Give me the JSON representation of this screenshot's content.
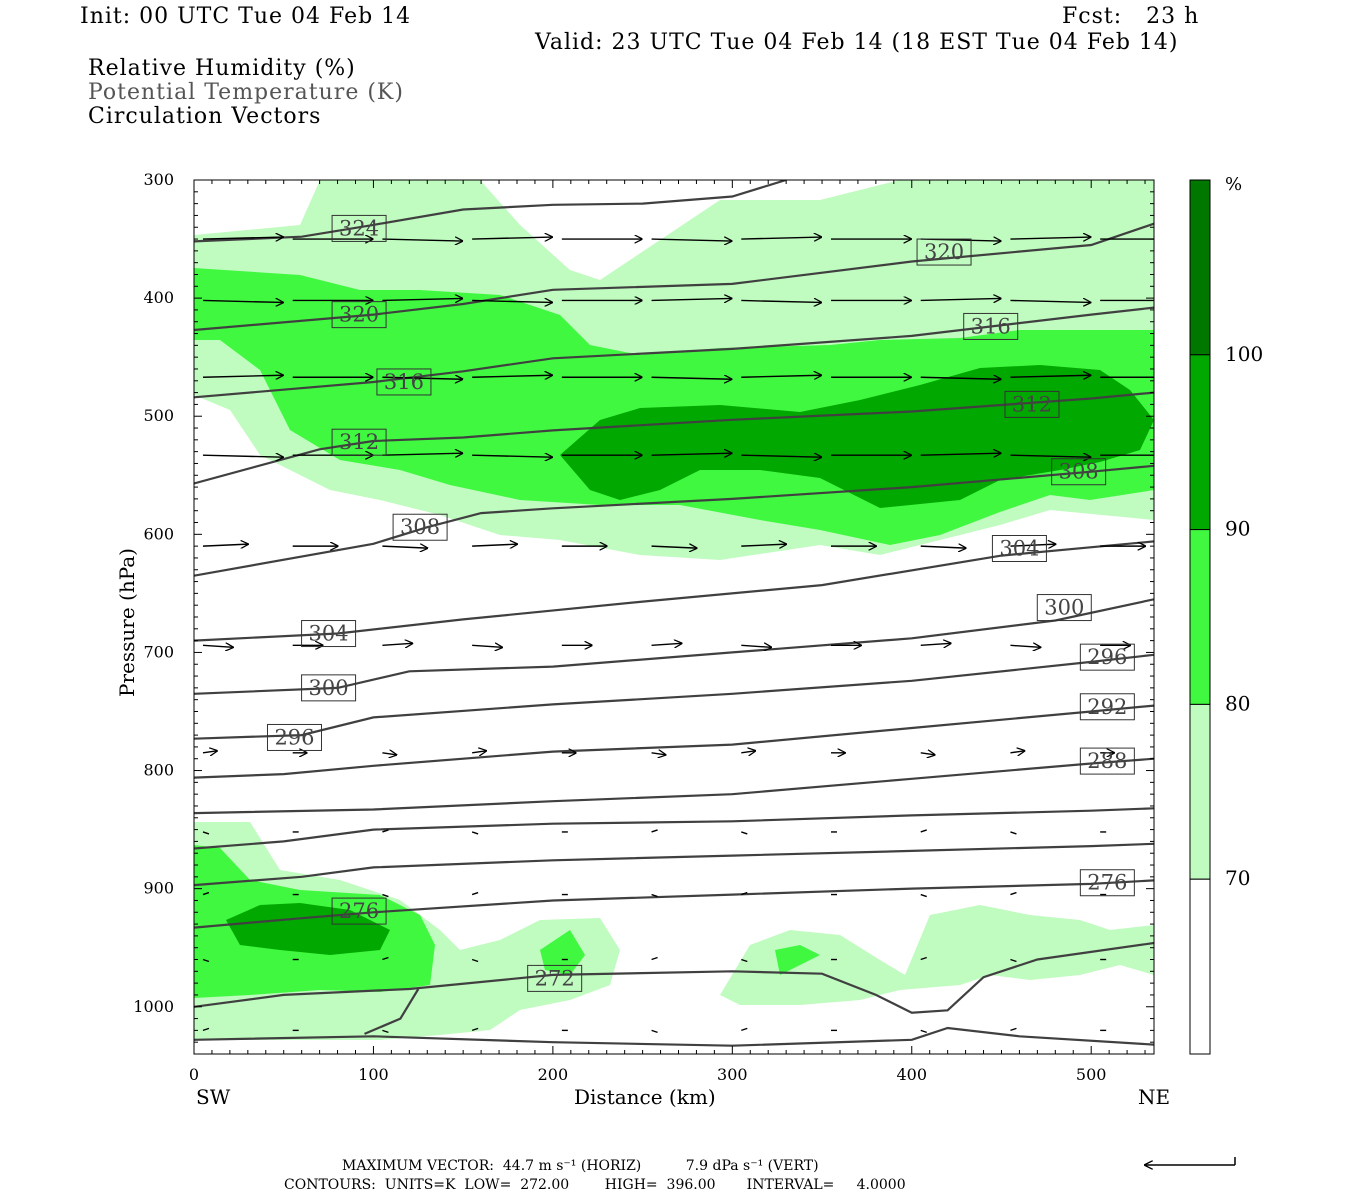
{
  "header": {
    "init": "Init: 00 UTC Tue 04 Feb 14",
    "fcst": "Fcst:   23 h",
    "valid": "Valid: 23 UTC Tue 04 Feb 14 (18 EST Tue 04 Feb 14)",
    "fields": [
      "Relative Humidity (%)",
      "Potential Temperature (K)",
      "Circulation Vectors"
    ]
  },
  "footer": {
    "max_vector_line": "MAXIMUM VECTOR:  44.7 m s⁻¹ (HORIZ)          7.9 dPa s⁻¹ (VERT)",
    "contours_line": "CONTOURS:  UNITS=K  LOW=  272.00        HIGH=  396.00       INTERVAL=     4.0000"
  },
  "colors": {
    "rh70": "#c0fbc0",
    "rh80": "#40f840",
    "rh90": "#00a800",
    "rh100": "#007800",
    "contour": "#404040"
  },
  "chart_data": {
    "type": "cross-section",
    "xlabel": "Distance (km)",
    "ylabel": "Pressure (hPa)",
    "xlim": [
      0,
      535
    ],
    "ylim": [
      1040,
      300
    ],
    "x_ticks": [
      0,
      100,
      200,
      300,
      400,
      500
    ],
    "y_ticks": [
      300,
      400,
      500,
      600,
      700,
      800,
      900,
      1000
    ],
    "x_end_labels": {
      "left": "SW",
      "right": "NE"
    },
    "colorbar": {
      "unit": "%",
      "levels": [
        70,
        80,
        90,
        100
      ]
    },
    "theta_contours": [
      {
        "label": "324",
        "label_pos": [
          92,
          341
        ],
        "points": [
          [
            0,
            352
          ],
          [
            60,
            348
          ],
          [
            100,
            338
          ],
          [
            150,
            325
          ],
          [
            200,
            321
          ],
          [
            250,
            320
          ],
          [
            300,
            314
          ],
          [
            330,
            300
          ]
        ]
      },
      {
        "label": "320",
        "label_pos": [
          92,
          414
        ],
        "points": [
          [
            0,
            427
          ],
          [
            100,
            414
          ],
          [
            150,
            405
          ],
          [
            200,
            393
          ],
          [
            300,
            388
          ],
          [
            400,
            369
          ],
          [
            500,
            355
          ],
          [
            535,
            337
          ]
        ]
      },
      {
        "label": "320",
        "label_pos": [
          418,
          361
        ],
        "points": []
      },
      {
        "label": "316",
        "label_pos": [
          117,
          471
        ],
        "points": [
          [
            0,
            484
          ],
          [
            100,
            471
          ],
          [
            150,
            462
          ],
          [
            200,
            451
          ],
          [
            300,
            443
          ],
          [
            400,
            432
          ],
          [
            500,
            414
          ],
          [
            535,
            408
          ]
        ]
      },
      {
        "label": "316",
        "label_pos": [
          444,
          424
        ],
        "points": []
      },
      {
        "label": "312",
        "label_pos": [
          92,
          522
        ],
        "points": [
          [
            0,
            557
          ],
          [
            70,
            528
          ],
          [
            100,
            521
          ],
          [
            150,
            518
          ],
          [
            200,
            512
          ],
          [
            300,
            503
          ],
          [
            400,
            496
          ],
          [
            500,
            485
          ],
          [
            535,
            480
          ]
        ]
      },
      {
        "label": "312",
        "label_pos": [
          467,
          490
        ],
        "points": []
      },
      {
        "label": "308",
        "label_pos": [
          126,
          594
        ],
        "points": [
          [
            0,
            635
          ],
          [
            100,
            608
          ],
          [
            130,
            594
          ],
          [
            160,
            582
          ],
          [
            200,
            578
          ],
          [
            300,
            570
          ],
          [
            400,
            560
          ],
          [
            500,
            547
          ],
          [
            535,
            542
          ]
        ]
      },
      {
        "label": "308",
        "label_pos": [
          493,
          547
        ],
        "points": []
      },
      {
        "label": "304",
        "label_pos": [
          75,
          684
        ],
        "points": [
          [
            0,
            690
          ],
          [
            80,
            684
          ],
          [
            150,
            672
          ],
          [
            250,
            657
          ],
          [
            350,
            643
          ],
          [
            450,
            618
          ],
          [
            535,
            606
          ]
        ]
      },
      {
        "label": "304",
        "label_pos": [
          460,
          612
        ],
        "points": []
      },
      {
        "label": "300",
        "label_pos": [
          75,
          730
        ],
        "points": [
          [
            0,
            735
          ],
          [
            80,
            730
          ],
          [
            120,
            716
          ],
          [
            200,
            712
          ],
          [
            300,
            700
          ],
          [
            400,
            688
          ],
          [
            480,
            673
          ],
          [
            535,
            655
          ]
        ]
      },
      {
        "label": "300",
        "label_pos": [
          485,
          662
        ],
        "points": []
      },
      {
        "label": "296",
        "label_pos": [
          56,
          772
        ],
        "points": [
          [
            0,
            773
          ],
          [
            60,
            770
          ],
          [
            100,
            755
          ],
          [
            200,
            744
          ],
          [
            300,
            735
          ],
          [
            400,
            724
          ],
          [
            500,
            708
          ],
          [
            535,
            702
          ]
        ]
      },
      {
        "label": "296",
        "label_pos": [
          509,
          704
        ],
        "points": []
      },
      {
        "label": "292",
        "label_pos": [
          509,
          746
        ],
        "points": [
          [
            0,
            806
          ],
          [
            50,
            803
          ],
          [
            100,
            796
          ],
          [
            200,
            784
          ],
          [
            300,
            778
          ],
          [
            400,
            764
          ],
          [
            500,
            750
          ],
          [
            535,
            745
          ]
        ]
      },
      {
        "label": "288",
        "label_pos": [
          509,
          792
        ],
        "points": [
          [
            0,
            836
          ],
          [
            100,
            833
          ],
          [
            200,
            826
          ],
          [
            300,
            820
          ],
          [
            400,
            807
          ],
          [
            500,
            794
          ],
          [
            535,
            790
          ]
        ]
      },
      {
        "label": "",
        "label_pos": [],
        "points": [
          [
            0,
            866
          ],
          [
            50,
            860
          ],
          [
            100,
            850
          ],
          [
            200,
            845
          ],
          [
            300,
            843
          ],
          [
            400,
            838
          ],
          [
            500,
            834
          ],
          [
            535,
            832
          ]
        ]
      },
      {
        "label": "",
        "label_pos": [],
        "points": [
          [
            0,
            897
          ],
          [
            60,
            890
          ],
          [
            100,
            882
          ],
          [
            200,
            876
          ],
          [
            300,
            872
          ],
          [
            400,
            868
          ],
          [
            500,
            864
          ],
          [
            535,
            862
          ]
        ]
      },
      {
        "label": "276",
        "label_pos": [
          92,
          919
        ],
        "points": [
          [
            0,
            933
          ],
          [
            60,
            925
          ],
          [
            100,
            920
          ],
          [
            200,
            910
          ],
          [
            300,
            905
          ],
          [
            400,
            900
          ],
          [
            500,
            896
          ],
          [
            535,
            893
          ]
        ]
      },
      {
        "label": "276",
        "label_pos": [
          509,
          895
        ],
        "points": []
      },
      {
        "label": "272",
        "label_pos": [
          201,
          976
        ],
        "points": [
          [
            0,
            1000
          ],
          [
            50,
            990
          ],
          [
            120,
            985
          ],
          [
            200,
            973
          ],
          [
            300,
            970
          ],
          [
            350,
            972
          ],
          [
            380,
            990
          ],
          [
            400,
            1005
          ],
          [
            420,
            1003
          ],
          [
            440,
            975
          ],
          [
            470,
            960
          ],
          [
            535,
            946
          ]
        ]
      },
      {
        "label": "",
        "label_pos": [],
        "points": [
          [
            95,
            1023
          ],
          [
            115,
            1010
          ],
          [
            125,
            985
          ]
        ]
      },
      {
        "label": "",
        "label_pos": [],
        "points": [
          [
            0,
            1028
          ],
          [
            100,
            1025
          ],
          [
            200,
            1030
          ],
          [
            300,
            1033
          ],
          [
            400,
            1028
          ],
          [
            420,
            1018
          ],
          [
            460,
            1025
          ],
          [
            535,
            1032
          ]
        ]
      }
    ],
    "vectors_rows_hpa": [
      350,
      402,
      467,
      533,
      610,
      694,
      785,
      852,
      905,
      960,
      1020
    ]
  }
}
